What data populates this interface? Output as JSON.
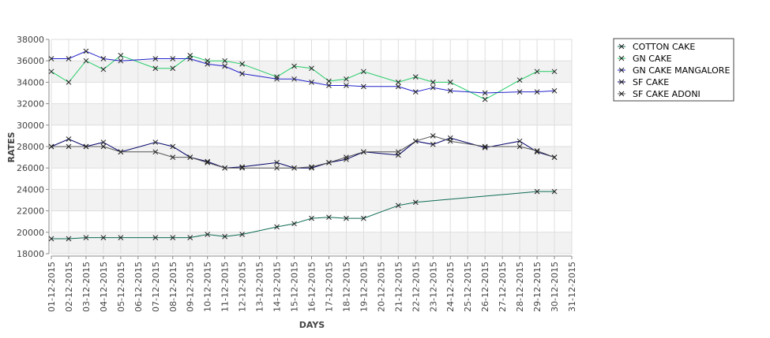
{
  "chart_data": {
    "type": "line",
    "xlabel": "DAYS",
    "ylabel": "RATES",
    "ylim": [
      18000,
      38000
    ],
    "y_ticks": [
      18000,
      20000,
      22000,
      24000,
      26000,
      28000,
      30000,
      32000,
      34000,
      36000,
      38000
    ],
    "y_tick_labels": [
      "18000",
      "20000",
      "22000",
      "24000",
      "26000",
      "28000",
      "30000",
      "32000",
      "34000",
      "36000",
      "38000"
    ],
    "grid": true,
    "legend_position": "top-right",
    "categories": [
      "01-12-2015",
      "02-12-2015",
      "03-12-2015",
      "04-12-2015",
      "05-12-2015",
      "06-12-2015",
      "07-12-2015",
      "08-12-2015",
      "09-12-2015",
      "10-12-2015",
      "11-12-2015",
      "12-12-2015",
      "13-12-2015",
      "14-12-2015",
      "15-12-2015",
      "16-12-2015",
      "17-12-2015",
      "18-12-2015",
      "19-12-2015",
      "20-12-2015",
      "21-12-2015",
      "22-12-2015",
      "23-12-2015",
      "24-12-2015",
      "25-12-2015",
      "26-12-2015",
      "27-12-2015",
      "28-12-2015",
      "29-12-2015",
      "30-12-2015",
      "31-12-2015"
    ],
    "series": [
      {
        "name": "COTTON CAKE",
        "color": "#0e6b55",
        "points": [
          [
            0,
            19400
          ],
          [
            1,
            19400
          ],
          [
            2,
            19500
          ],
          [
            3,
            19500
          ],
          [
            4,
            19500
          ],
          [
            6,
            19500
          ],
          [
            7,
            19500
          ],
          [
            8,
            19500
          ],
          [
            9,
            19800
          ],
          [
            10,
            19600
          ],
          [
            11,
            19800
          ],
          [
            13,
            20500
          ],
          [
            14,
            20800
          ],
          [
            15,
            21300
          ],
          [
            16,
            21400
          ],
          [
            17,
            21300
          ],
          [
            18,
            21300
          ],
          [
            20,
            22500
          ],
          [
            21,
            22800
          ],
          [
            28,
            23800
          ],
          [
            29,
            23800
          ]
        ]
      },
      {
        "name": "GN CAKE",
        "color": "#22cc66",
        "points": [
          [
            0,
            35000
          ],
          [
            1,
            34000
          ],
          [
            2,
            36000
          ],
          [
            3,
            35200
          ],
          [
            4,
            36500
          ],
          [
            6,
            35300
          ],
          [
            7,
            35300
          ],
          [
            8,
            36500
          ],
          [
            9,
            36000
          ],
          [
            10,
            36000
          ],
          [
            11,
            35700
          ],
          [
            13,
            34500
          ],
          [
            14,
            35500
          ],
          [
            15,
            35300
          ],
          [
            16,
            34100
          ],
          [
            17,
            34300
          ],
          [
            18,
            35000
          ],
          [
            20,
            34000
          ],
          [
            21,
            34500
          ],
          [
            22,
            34000
          ],
          [
            23,
            34000
          ],
          [
            25,
            32400
          ],
          [
            27,
            34200
          ],
          [
            28,
            35000
          ],
          [
            29,
            35000
          ]
        ]
      },
      {
        "name": "GN CAKE MANGALORE",
        "color": "#2222cc",
        "points": [
          [
            0,
            36200
          ],
          [
            1,
            36200
          ],
          [
            2,
            36900
          ],
          [
            3,
            36200
          ],
          [
            4,
            36000
          ],
          [
            6,
            36200
          ],
          [
            7,
            36200
          ],
          [
            8,
            36200
          ],
          [
            9,
            35700
          ],
          [
            10,
            35500
          ],
          [
            11,
            34800
          ],
          [
            13,
            34300
          ],
          [
            14,
            34300
          ],
          [
            15,
            34000
          ],
          [
            16,
            33700
          ],
          [
            17,
            33700
          ],
          [
            18,
            33600
          ],
          [
            20,
            33600
          ],
          [
            21,
            33100
          ],
          [
            22,
            33500
          ],
          [
            23,
            33200
          ],
          [
            25,
            33000
          ],
          [
            27,
            33100
          ],
          [
            28,
            33100
          ],
          [
            29,
            33200
          ]
        ]
      },
      {
        "name": "SF CAKE",
        "color": "#000066",
        "points": [
          [
            0,
            28000
          ],
          [
            1,
            28700
          ],
          [
            2,
            28000
          ],
          [
            3,
            28400
          ],
          [
            4,
            27500
          ],
          [
            6,
            28400
          ],
          [
            7,
            28000
          ],
          [
            8,
            27000
          ],
          [
            9,
            26600
          ],
          [
            10,
            26000
          ],
          [
            11,
            26100
          ],
          [
            13,
            26500
          ],
          [
            14,
            26000
          ],
          [
            15,
            26000
          ],
          [
            16,
            26500
          ],
          [
            17,
            26800
          ],
          [
            18,
            27500
          ],
          [
            20,
            27200
          ],
          [
            21,
            28500
          ],
          [
            22,
            28200
          ],
          [
            23,
            28800
          ],
          [
            25,
            27900
          ],
          [
            27,
            28500
          ],
          [
            28,
            27500
          ],
          [
            29,
            27000
          ]
        ]
      },
      {
        "name": "SF CAKE ADONI",
        "color": "#555555",
        "points": [
          [
            0,
            28000
          ],
          [
            1,
            28000
          ],
          [
            2,
            28000
          ],
          [
            3,
            28000
          ],
          [
            4,
            27500
          ],
          [
            6,
            27500
          ],
          [
            7,
            27000
          ],
          [
            8,
            27000
          ],
          [
            9,
            26500
          ],
          [
            10,
            26000
          ],
          [
            11,
            26000
          ],
          [
            13,
            26000
          ],
          [
            14,
            26000
          ],
          [
            15,
            26100
          ],
          [
            16,
            26500
          ],
          [
            17,
            27000
          ],
          [
            18,
            27500
          ],
          [
            20,
            27500
          ],
          [
            21,
            28500
          ],
          [
            22,
            29000
          ],
          [
            23,
            28500
          ],
          [
            25,
            28000
          ],
          [
            27,
            28000
          ],
          [
            28,
            27600
          ],
          [
            29,
            27000
          ]
        ]
      }
    ]
  }
}
